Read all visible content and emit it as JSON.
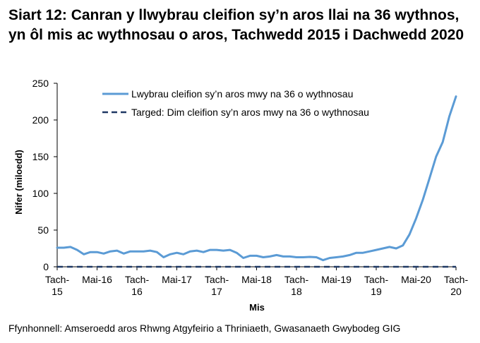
{
  "title": "Siart 12: Canran y llwybrau cleifion sy’n aros llai na 36 wythnos, yn ôl mis ac wythnosau o aros, Tachwedd 2015 i Dachwedd 2020",
  "source": "Ffynhonnell: Amseroedd aros Rhwng Atgyfeirio a Thriniaeth, Gwasanaeth Gwybodeg GIG",
  "chart_data": {
    "type": "line",
    "ylabel": "Nifer (miloedd)",
    "xlabel": "Mis",
    "ylim": [
      0,
      250
    ],
    "yticks": [
      0,
      50,
      100,
      150,
      200,
      250
    ],
    "grid": false,
    "legend_position": "top",
    "x": [
      "Nov-15",
      "Dec-15",
      "Jan-16",
      "Feb-16",
      "Mar-16",
      "Apr-16",
      "May-16",
      "Jun-16",
      "Jul-16",
      "Aug-16",
      "Sep-16",
      "Oct-16",
      "Nov-16",
      "Dec-16",
      "Jan-17",
      "Feb-17",
      "Mar-17",
      "Apr-17",
      "May-17",
      "Jun-17",
      "Jul-17",
      "Aug-17",
      "Sep-17",
      "Oct-17",
      "Nov-17",
      "Dec-17",
      "Jan-18",
      "Feb-18",
      "Mar-18",
      "Apr-18",
      "May-18",
      "Jun-18",
      "Jul-18",
      "Aug-18",
      "Sep-18",
      "Oct-18",
      "Nov-18",
      "Dec-18",
      "Jan-19",
      "Feb-19",
      "Mar-19",
      "Apr-19",
      "May-19",
      "Jun-19",
      "Jul-19",
      "Aug-19",
      "Sep-19",
      "Oct-19",
      "Nov-19",
      "Dec-19",
      "Jan-20",
      "Feb-20",
      "Mar-20",
      "Apr-20",
      "May-20",
      "Jun-20",
      "Jul-20",
      "Aug-20",
      "Sep-20",
      "Oct-20",
      "Nov-20"
    ],
    "x_tick_labels": [
      {
        "index": 0,
        "lines": [
          "Tach-",
          "15"
        ]
      },
      {
        "index": 6,
        "lines": [
          "Mai-16"
        ]
      },
      {
        "index": 12,
        "lines": [
          "Tach-",
          "16"
        ]
      },
      {
        "index": 18,
        "lines": [
          "Mai-17"
        ]
      },
      {
        "index": 24,
        "lines": [
          "Tach-",
          "17"
        ]
      },
      {
        "index": 30,
        "lines": [
          "Mai-18"
        ]
      },
      {
        "index": 36,
        "lines": [
          "Tach-",
          "18"
        ]
      },
      {
        "index": 42,
        "lines": [
          "Mai-19"
        ]
      },
      {
        "index": 48,
        "lines": [
          "Tach-",
          "19"
        ]
      },
      {
        "index": 54,
        "lines": [
          "Mai-20"
        ]
      },
      {
        "index": 60,
        "lines": [
          "Tach-",
          "20"
        ]
      }
    ],
    "series": [
      {
        "name": "Lwybrau cleifion sy’n aros mwy na 36 o wythnosau",
        "color": "#5b9bd5",
        "style": "solid",
        "values": [
          26,
          26,
          27,
          23,
          17,
          20,
          20,
          18,
          21,
          22,
          18,
          21,
          21,
          21,
          22,
          20,
          13,
          17,
          19,
          17,
          21,
          22,
          20,
          23,
          23,
          22,
          23,
          19,
          12,
          15,
          15,
          13,
          14,
          16,
          14,
          14,
          13,
          13,
          13.5,
          13,
          9,
          12,
          13,
          14,
          16,
          19,
          19,
          21,
          23,
          25,
          27,
          25,
          29,
          44,
          66,
          91,
          120,
          150,
          170,
          205,
          232
        ]
      },
      {
        "name": "Targed: Dim cleifion sy’n aros mwy na 36 o wythnosau",
        "color": "#1f3864",
        "style": "dashed",
        "values": [
          0,
          0,
          0,
          0,
          0,
          0,
          0,
          0,
          0,
          0,
          0,
          0,
          0,
          0,
          0,
          0,
          0,
          0,
          0,
          0,
          0,
          0,
          0,
          0,
          0,
          0,
          0,
          0,
          0,
          0,
          0,
          0,
          0,
          0,
          0,
          0,
          0,
          0,
          0,
          0,
          0,
          0,
          0,
          0,
          0,
          0,
          0,
          0,
          0,
          0,
          0,
          0,
          0,
          0,
          0,
          0,
          0,
          0,
          0,
          0,
          0
        ]
      }
    ]
  }
}
